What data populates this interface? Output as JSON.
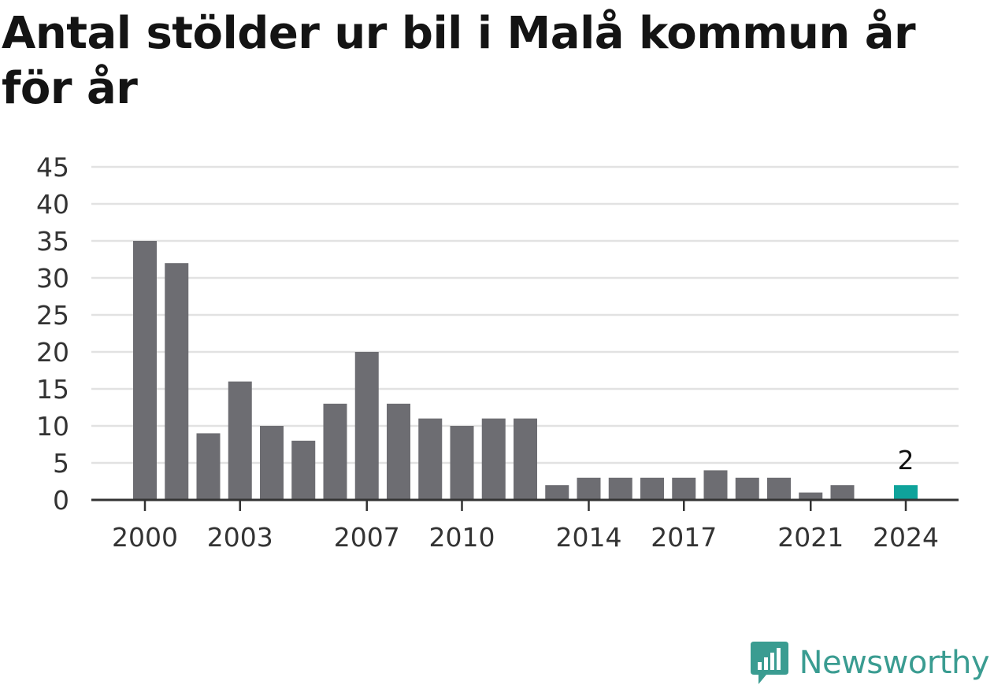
{
  "title": "Antal stölder ur bil i Malå kommun år för år",
  "brand": {
    "name": "Newsworthy",
    "icon": "newsworthy-logo-icon"
  },
  "colors": {
    "bar": "#6d6d72",
    "highlight": "#0fa39b",
    "grid": "#e2e2e2",
    "axis": "#333333",
    "text": "#333333",
    "brand": "#3a9c91"
  },
  "chart_data": {
    "type": "bar",
    "categories": [
      "2000",
      "2001",
      "2002",
      "2003",
      "2004",
      "2005",
      "2006",
      "2007",
      "2008",
      "2009",
      "2010",
      "2011",
      "2012",
      "2013",
      "2014",
      "2015",
      "2016",
      "2017",
      "2018",
      "2019",
      "2020",
      "2021",
      "2022",
      "2023",
      "2024"
    ],
    "values": [
      35,
      32,
      9,
      16,
      10,
      8,
      13,
      20,
      13,
      11,
      10,
      11,
      11,
      2,
      3,
      3,
      3,
      3,
      4,
      3,
      3,
      1,
      2,
      null,
      2
    ],
    "highlight_index": 24,
    "highlight_label": "2",
    "x_tick_labels": [
      "2000",
      "2003",
      "2007",
      "2010",
      "2014",
      "2017",
      "2021",
      "2024"
    ],
    "y_ticks": [
      0,
      5,
      10,
      15,
      20,
      25,
      30,
      35,
      40,
      45
    ],
    "ylim": [
      0,
      45
    ],
    "grid": true,
    "xlabel": "",
    "ylabel": ""
  }
}
